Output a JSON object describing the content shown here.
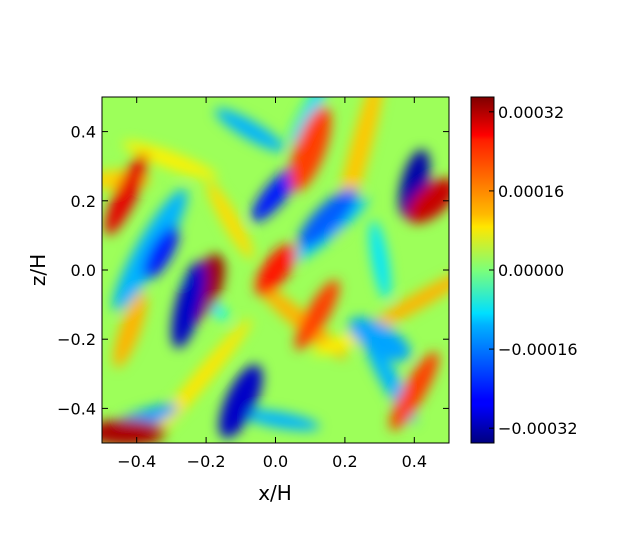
{
  "chart_data": {
    "type": "heatmap",
    "title": "",
    "xlabel": "x/H",
    "ylabel": "z/H",
    "xlim": [
      -0.5,
      0.5
    ],
    "ylim": [
      -0.5,
      0.5
    ],
    "x_ticks": [
      -0.4,
      -0.2,
      0.0,
      0.2,
      0.4
    ],
    "x_tick_labels": [
      "−0.4",
      "−0.2",
      "0.0",
      "0.2",
      "0.4"
    ],
    "y_ticks": [
      -0.4,
      -0.2,
      0.0,
      0.2,
      0.4
    ],
    "y_tick_labels": [
      "−0.4",
      "−0.2",
      "0.0",
      "0.2",
      "0.4"
    ],
    "colorbar": {
      "colormap": "jet",
      "range": [
        -0.00035,
        0.00035
      ],
      "ticks": [
        -0.00032,
        -0.00016,
        0.0,
        0.00016,
        0.00032
      ],
      "tick_labels": [
        "−0.00032",
        "−0.00016",
        "0.00000",
        "0.00016",
        "0.00032"
      ]
    },
    "features": [
      {
        "x": -0.43,
        "z": 0.22,
        "value": 0.00028
      },
      {
        "x": -0.43,
        "z": -0.47,
        "value": 0.00032
      },
      {
        "x": -0.2,
        "z": -0.05,
        "value": 0.00033
      },
      {
        "x": -0.33,
        "z": 0.05,
        "value": -0.00025
      },
      {
        "x": -0.25,
        "z": -0.1,
        "value": -0.0003
      },
      {
        "x": -0.1,
        "z": -0.38,
        "value": -0.0003
      },
      {
        "x": 0.0,
        "z": 0.22,
        "value": -0.00025
      },
      {
        "x": 0.0,
        "z": 0.0,
        "value": 0.00025
      },
      {
        "x": 0.1,
        "z": 0.35,
        "value": 0.00022
      },
      {
        "x": 0.12,
        "z": -0.13,
        "value": 0.00022
      },
      {
        "x": 0.4,
        "z": 0.25,
        "value": -0.00032
      },
      {
        "x": 0.45,
        "z": 0.2,
        "value": 0.0003
      },
      {
        "x": 0.4,
        "z": -0.35,
        "value": 0.00022
      },
      {
        "x": 0.15,
        "z": 0.15,
        "value": -0.0002
      },
      {
        "x": 0.3,
        "z": -0.2,
        "value": -0.00015
      }
    ]
  }
}
